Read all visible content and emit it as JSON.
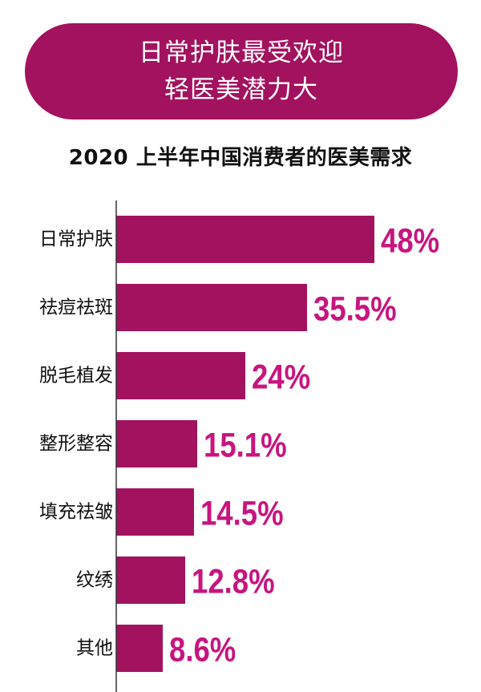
{
  "banner": {
    "line1": "日常护肤最受欢迎",
    "line2": "轻医美潜力大"
  },
  "colors": {
    "accent": "#a3125f",
    "bar": "#a3125f",
    "value_label": "#c8157f",
    "axis": "#333333",
    "text": "#111111"
  },
  "chart_data": {
    "type": "bar",
    "orientation": "horizontal",
    "title": "2020 上半年中国消费者的医美需求",
    "categories": [
      "日常护肤",
      "祛痘祛斑",
      "脱毛植发",
      "整形整容",
      "填充祛皱",
      "纹绣",
      "其他"
    ],
    "values": [
      48,
      35.5,
      24,
      15.1,
      14.5,
      12.8,
      8.6
    ],
    "value_labels": [
      "48%",
      "35.5%",
      "24%",
      "15.1%",
      "14.5%",
      "12.8%",
      "8.6%"
    ],
    "unit": "%",
    "xlim": [
      0,
      48
    ],
    "xlabel": "",
    "ylabel": "",
    "grid": false,
    "legend": "none"
  }
}
